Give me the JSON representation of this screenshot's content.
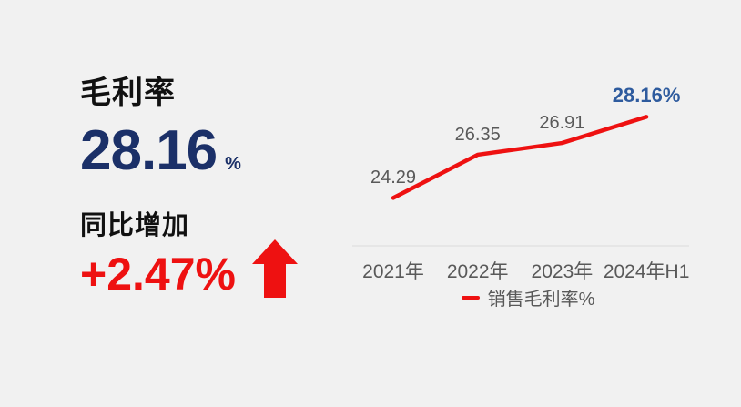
{
  "background": "#f1f1f1",
  "left_panel": {
    "title": "毛利率",
    "value": "28.16",
    "unit": "%",
    "change_label": "同比增加",
    "change_value": "+2.47%",
    "arrow_icon": "up-arrow"
  },
  "colors": {
    "navy": "#1b3068",
    "black": "#111111",
    "red": "#ee1111",
    "highlight_blue": "#2e5b9e",
    "label_gray": "#595959",
    "axis_gray": "#e3e3e3",
    "background_gray": "#f1f1f1"
  },
  "chart_data": {
    "type": "line",
    "title": "",
    "xlabel": "",
    "ylabel": "",
    "categories": [
      "2021年",
      "2022年",
      "2023年",
      "2024年H1"
    ],
    "series": [
      {
        "name": "销售毛利率%",
        "values": [
          24.29,
          26.35,
          26.91,
          28.16
        ]
      }
    ],
    "point_labels": [
      "24.29",
      "26.35",
      "26.91",
      "28.16%"
    ],
    "highlight_last_point": true,
    "ylim": [
      22,
      29.5
    ],
    "grid": false,
    "legend_position": "bottom",
    "line_color": "#ee1111"
  }
}
